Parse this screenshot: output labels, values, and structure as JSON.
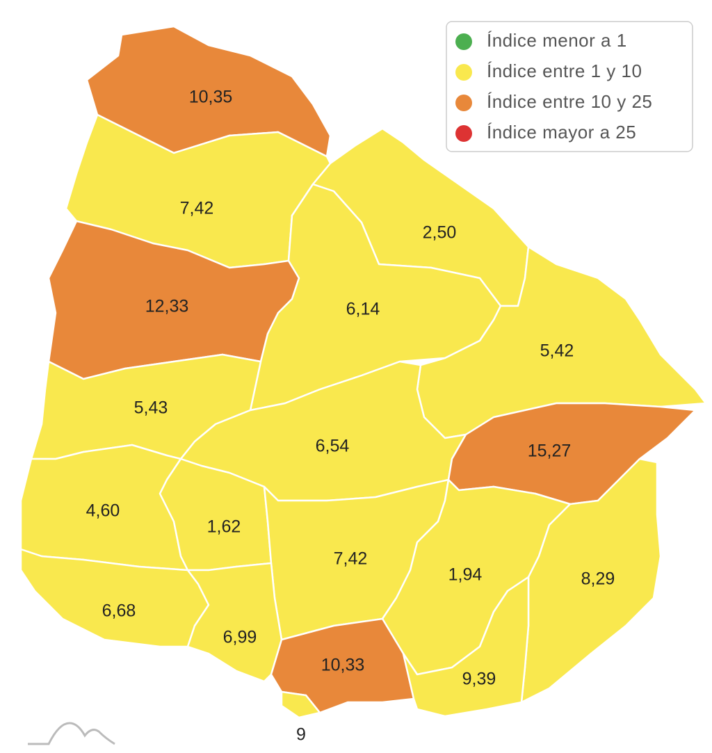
{
  "legend": [
    {
      "label": "Índice menor a 1",
      "color": "#4caf50"
    },
    {
      "label": "Índice entre 1 y 10",
      "color": "#f9e84e"
    },
    {
      "label": "Índice entre 10 y 25",
      "color": "#e8883a"
    },
    {
      "label": "Índice mayor a 25",
      "color": "#dd3333"
    }
  ],
  "regions": [
    {
      "value": 10.35,
      "label": "10,35",
      "category": 2
    },
    {
      "value": 7.42,
      "label": "7,42",
      "category": 1
    },
    {
      "value": 2.5,
      "label": "2,50",
      "category": 1
    },
    {
      "value": 12.33,
      "label": "12,33",
      "category": 2
    },
    {
      "value": 6.14,
      "label": "6,14",
      "category": 1
    },
    {
      "value": 5.42,
      "label": "5,42",
      "category": 1
    },
    {
      "value": 5.43,
      "label": "5,43",
      "category": 1
    },
    {
      "value": 6.54,
      "label": "6,54",
      "category": 1
    },
    {
      "value": 15.27,
      "label": "15,27",
      "category": 2
    },
    {
      "value": 4.6,
      "label": "4,60",
      "category": 1
    },
    {
      "value": 1.62,
      "label": "1,62",
      "category": 1
    },
    {
      "value": 7.42,
      "label": "7,42",
      "category": 1
    },
    {
      "value": 1.94,
      "label": "1,94",
      "category": 1
    },
    {
      "value": 8.29,
      "label": "8,29",
      "category": 1
    },
    {
      "value": 6.68,
      "label": "6,68",
      "category": 1
    },
    {
      "value": 6.99,
      "label": "6,99",
      "category": 1
    },
    {
      "value": 10.33,
      "label": "10,33",
      "category": 2
    },
    {
      "value": 9.39,
      "label": "9,39",
      "category": 1
    },
    {
      "value": 9,
      "category": 1
    }
  ]
}
